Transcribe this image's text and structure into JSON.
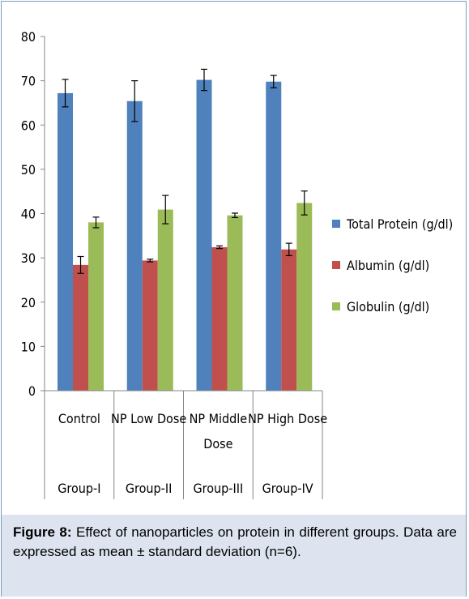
{
  "chart_data": {
    "type": "bar",
    "categories": [
      [
        "Control",
        "Group-I"
      ],
      [
        "NP Low Dose",
        "Group-II"
      ],
      [
        "NP Middle Dose",
        "Group-III"
      ],
      [
        "NP High Dose",
        "Group-IV"
      ]
    ],
    "category_labels": [
      {
        "line1": "Control",
        "line2": "",
        "group": "Group-I"
      },
      {
        "line1": "NP Low Dose",
        "line2": "",
        "group": "Group-II"
      },
      {
        "line1": "NP Middle",
        "line2": "Dose",
        "group": "Group-III"
      },
      {
        "line1": "NP High Dose",
        "line2": "",
        "group": "Group-IV"
      }
    ],
    "series": [
      {
        "name": "Total Protein  (g/dl)",
        "color": "#4f81bd",
        "values": [
          67.2,
          65.4,
          70.2,
          69.8
        ],
        "errors": [
          3.1,
          4.6,
          2.4,
          1.4
        ]
      },
      {
        "name": "Albumin  (g/dl)",
        "color": "#c0504d",
        "values": [
          28.4,
          29.4,
          32.4,
          31.9
        ],
        "errors": [
          1.9,
          0.3,
          0.3,
          1.4
        ]
      },
      {
        "name": "Globulin (g/dl)",
        "color": "#9bbb59",
        "values": [
          38.0,
          40.9,
          39.6,
          42.4
        ],
        "errors": [
          1.2,
          3.2,
          0.5,
          2.7
        ]
      }
    ],
    "ylim": [
      0,
      80
    ],
    "yticks": [
      0,
      10,
      20,
      30,
      40,
      50,
      60,
      70,
      80
    ],
    "grid": false,
    "legend": "right"
  },
  "caption": {
    "label": "Figure   8:",
    "text": "  Effect of nanoparticles on  protein in  different groups. Data are expressed as mean ± standard deviation (n=6)."
  }
}
